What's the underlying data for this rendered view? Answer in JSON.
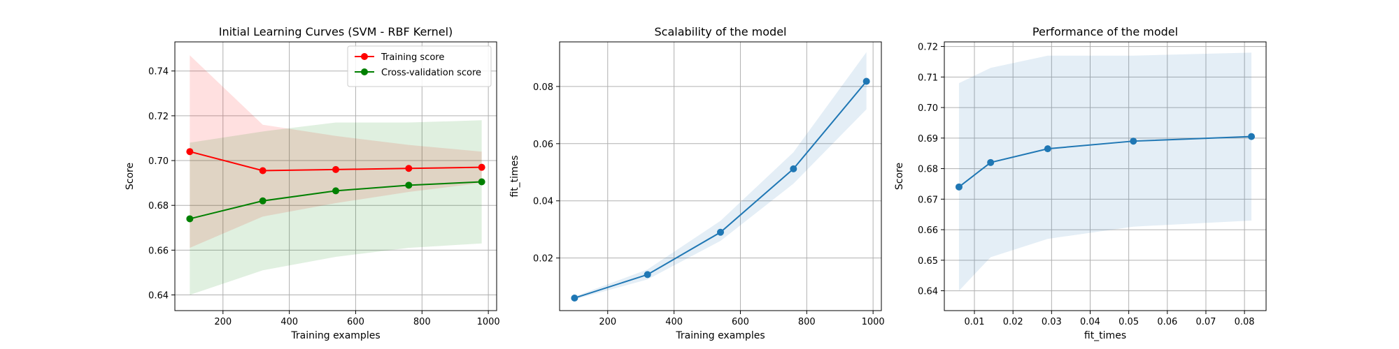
{
  "chart_data": [
    {
      "type": "line",
      "title": "Initial Learning Curves (SVM - RBF Kernel)",
      "xlabel": "Training examples",
      "ylabel": "Score",
      "xlim": [
        55,
        1025
      ],
      "ylim": [
        0.633,
        0.753
      ],
      "xticks": [
        200,
        400,
        600,
        800,
        1000
      ],
      "yticks": [
        0.64,
        0.66,
        0.68,
        0.7,
        0.72,
        0.74
      ],
      "ytick_decimals": 2,
      "grid": true,
      "legend": "top-right",
      "x": [
        100,
        320,
        540,
        760,
        980
      ],
      "series": [
        {
          "name": "Training score",
          "color": "#ff0000",
          "values": [
            0.704,
            0.6955,
            0.696,
            0.6965,
            0.697
          ],
          "band_lower": [
            0.661,
            0.675,
            0.681,
            0.686,
            0.69
          ],
          "band_upper": [
            0.747,
            0.716,
            0.711,
            0.707,
            0.704
          ]
        },
        {
          "name": "Cross-validation score",
          "color": "#008000",
          "values": [
            0.674,
            0.682,
            0.6865,
            0.689,
            0.6905
          ],
          "band_lower": [
            0.64,
            0.651,
            0.657,
            0.661,
            0.663
          ],
          "band_upper": [
            0.708,
            0.713,
            0.717,
            0.717,
            0.718
          ]
        }
      ]
    },
    {
      "type": "line",
      "title": "Scalability of the model",
      "xlabel": "Training examples",
      "ylabel": "fit_times",
      "xlim": [
        55,
        1025
      ],
      "ylim": [
        0.0016,
        0.0956
      ],
      "xticks": [
        200,
        400,
        600,
        800,
        1000
      ],
      "yticks": [
        0.02,
        0.04,
        0.06,
        0.08
      ],
      "ytick_decimals": 2,
      "grid": true,
      "x": [
        100,
        320,
        540,
        760,
        980
      ],
      "series": [
        {
          "name": "",
          "color": "#1f77b4",
          "values": [
            0.006,
            0.0142,
            0.029,
            0.0512,
            0.0818
          ],
          "band_lower": [
            0.0055,
            0.0125,
            0.026,
            0.046,
            0.072
          ],
          "band_upper": [
            0.0065,
            0.016,
            0.033,
            0.057,
            0.092
          ]
        }
      ]
    },
    {
      "type": "line",
      "title": "Performance of the model",
      "xlabel": "fit_times",
      "ylabel": "Score",
      "xlim": [
        0.0022,
        0.0856
      ],
      "ylim": [
        0.6335,
        0.7215
      ],
      "xticks": [
        0.01,
        0.02,
        0.03,
        0.04,
        0.05,
        0.06,
        0.07,
        0.08
      ],
      "xtick_decimals": 2,
      "yticks": [
        0.64,
        0.65,
        0.66,
        0.67,
        0.68,
        0.69,
        0.7,
        0.71,
        0.72
      ],
      "ytick_decimals": 2,
      "grid": true,
      "x": [
        0.006,
        0.0142,
        0.029,
        0.0512,
        0.0818
      ],
      "series": [
        {
          "name": "",
          "color": "#1f77b4",
          "values": [
            0.674,
            0.682,
            0.6865,
            0.689,
            0.6905
          ],
          "band_lower": [
            0.64,
            0.651,
            0.657,
            0.661,
            0.663
          ],
          "band_upper": [
            0.708,
            0.713,
            0.717,
            0.717,
            0.718
          ]
        }
      ]
    }
  ]
}
